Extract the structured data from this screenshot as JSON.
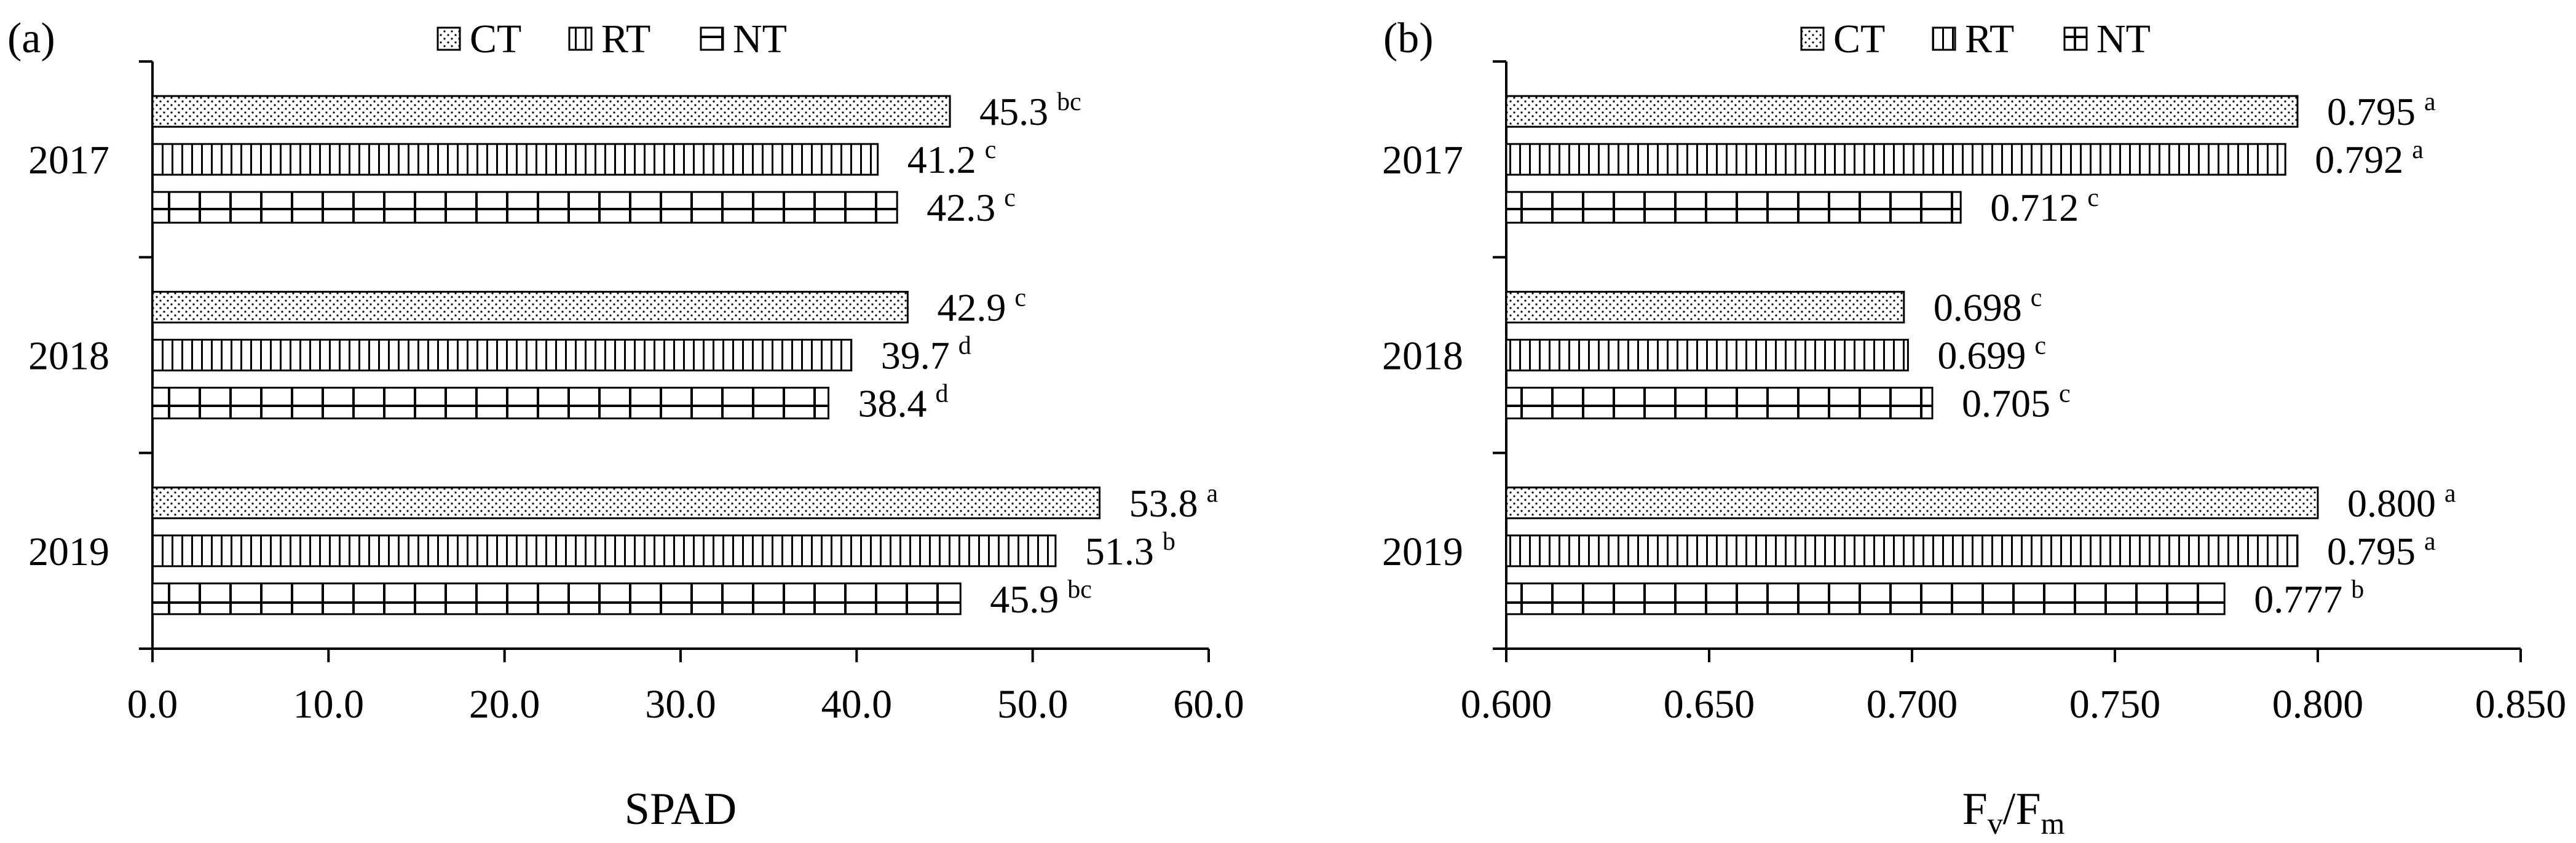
{
  "chart_data": [
    {
      "type": "bar",
      "orientation": "horizontal",
      "panel_label": "(a)",
      "xlabel": "SPAD",
      "categories": [
        "2017",
        "2018",
        "2019"
      ],
      "xlim": [
        0,
        60
      ],
      "xticks": [
        0,
        10,
        20,
        30,
        40,
        50,
        60
      ],
      "xtick_labels": [
        "0.0",
        "10.0",
        "20.0",
        "30.0",
        "40.0",
        "50.0",
        "60.0"
      ],
      "legend_position": "top-center",
      "grid": false,
      "series": [
        {
          "name": "CT",
          "pattern": "dots",
          "values": [
            45.3,
            42.9,
            53.8
          ],
          "labels": [
            "45.3",
            "42.9",
            "53.8"
          ],
          "letters": [
            "bc",
            "c",
            "a"
          ]
        },
        {
          "name": "RT",
          "pattern": "vertical-lines",
          "values": [
            41.2,
            39.7,
            51.3
          ],
          "labels": [
            "41.2",
            "39.7",
            "51.3"
          ],
          "letters": [
            "c",
            "d",
            "b"
          ]
        },
        {
          "name": "NT",
          "pattern": "grid",
          "values": [
            42.3,
            38.4,
            45.9
          ],
          "labels": [
            "42.3",
            "38.4",
            "45.9"
          ],
          "letters": [
            "c",
            "d",
            "bc"
          ]
        }
      ]
    },
    {
      "type": "bar",
      "orientation": "horizontal",
      "panel_label": "(b)",
      "xlabel": "Fv/Fm",
      "xlabel_main": "F",
      "xlabel_sub1": "v",
      "xlabel_mid": "/F",
      "xlabel_sub2": "m",
      "categories": [
        "2017",
        "2018",
        "2019"
      ],
      "xlim": [
        0.6,
        0.85
      ],
      "xticks": [
        0.6,
        0.65,
        0.7,
        0.75,
        0.8,
        0.85
      ],
      "xtick_labels": [
        "0.600",
        "0.650",
        "0.700",
        "0.750",
        "0.800",
        "0.850"
      ],
      "legend_position": "top-center",
      "grid": false,
      "series": [
        {
          "name": "CT",
          "pattern": "dots",
          "values": [
            0.795,
            0.698,
            0.8
          ],
          "labels": [
            "0.795",
            "0.698",
            "0.800"
          ],
          "letters": [
            "a",
            "c",
            "a"
          ]
        },
        {
          "name": "RT",
          "pattern": "vertical-lines",
          "values": [
            0.792,
            0.699,
            0.795
          ],
          "labels": [
            "0.792",
            "0.699",
            "0.795"
          ],
          "letters": [
            "a",
            "c",
            "a"
          ]
        },
        {
          "name": "NT",
          "pattern": "grid",
          "values": [
            0.712,
            0.705,
            0.777
          ],
          "labels": [
            "0.712",
            "0.705",
            "0.777"
          ],
          "letters": [
            "c",
            "c",
            "b"
          ]
        }
      ]
    }
  ]
}
